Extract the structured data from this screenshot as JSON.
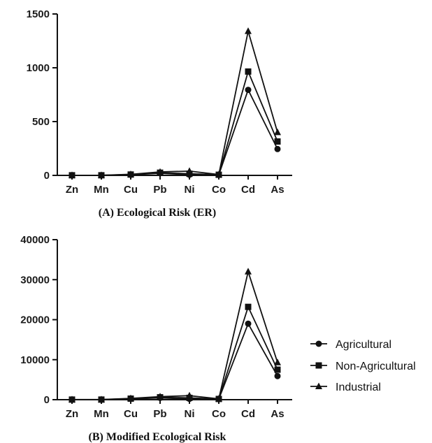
{
  "legend": {
    "items": [
      {
        "label": "Agricultural",
        "marker": "circle"
      },
      {
        "label": "Non-Agricultural",
        "marker": "square"
      },
      {
        "label": "Industrial",
        "marker": "triangle"
      }
    ]
  },
  "chart_data": [
    {
      "type": "line",
      "title": "(A) Ecological Risk (ER)",
      "categories": [
        "Zn",
        "Mn",
        "Cu",
        "Pb",
        "Ni",
        "Co",
        "Cd",
        "As"
      ],
      "ylim": [
        0,
        1500
      ],
      "yticks": [
        0,
        500,
        1000,
        1500
      ],
      "series": [
        {
          "name": "Agricultural",
          "marker": "circle",
          "values": [
            1,
            1,
            6,
            20,
            6,
            5,
            795,
            245
          ]
        },
        {
          "name": "Non-Agricultural",
          "marker": "square",
          "values": [
            1,
            1,
            8,
            25,
            15,
            6,
            965,
            315
          ]
        },
        {
          "name": "Industrial",
          "marker": "triangle",
          "values": [
            1,
            1,
            10,
            32,
            40,
            8,
            1340,
            400
          ]
        }
      ]
    },
    {
      "type": "line",
      "title": "(B) Modified Ecological Risk",
      "categories": [
        "Zn",
        "Mn",
        "Cu",
        "Pb",
        "Ni",
        "Co",
        "Cd",
        "As"
      ],
      "ylim": [
        0,
        40000
      ],
      "yticks": [
        0,
        10000,
        20000,
        30000,
        40000
      ],
      "series": [
        {
          "name": "Agricultural",
          "marker": "circle",
          "values": [
            20,
            20,
            200,
            450,
            200,
            150,
            19000,
            5900
          ]
        },
        {
          "name": "Non-Agricultural",
          "marker": "square",
          "values": [
            25,
            25,
            260,
            600,
            450,
            180,
            23200,
            7500
          ]
        },
        {
          "name": "Industrial",
          "marker": "triangle",
          "values": [
            30,
            30,
            320,
            760,
            1000,
            220,
            32000,
            9300
          ]
        }
      ]
    }
  ]
}
